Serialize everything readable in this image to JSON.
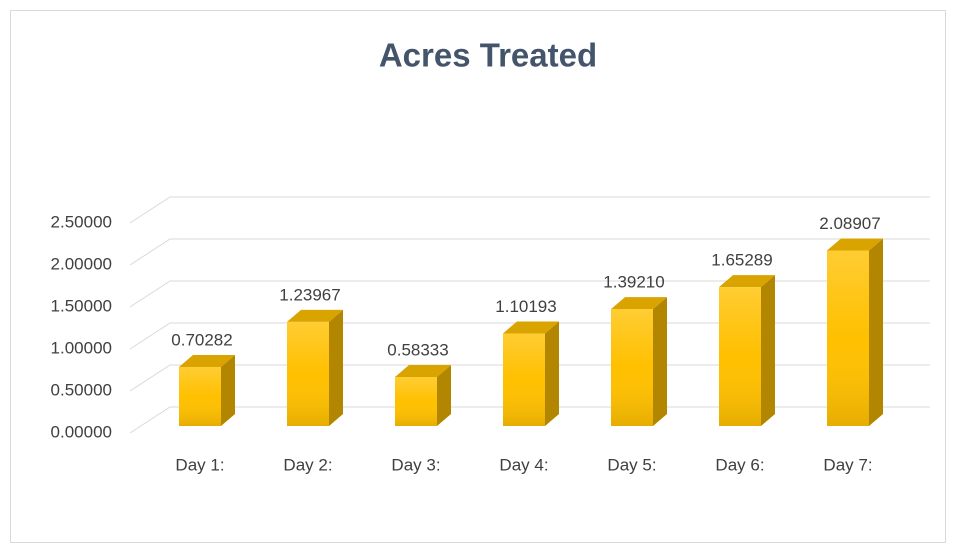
{
  "chart_data": {
    "type": "bar3d",
    "title": "Acres Treated",
    "categories": [
      "Day 1:",
      "Day 2:",
      "Day 3:",
      "Day 4:",
      "Day 5:",
      "Day 6:",
      "Day 7:"
    ],
    "values": [
      0.70282,
      1.23967,
      0.58333,
      1.10193,
      1.3921,
      1.65289,
      2.08907
    ],
    "value_labels": [
      "0.70282",
      "1.23967",
      "0.58333",
      "1.10193",
      "1.39210",
      "1.65289",
      "2.08907"
    ],
    "color": "#ffc000",
    "ylim": [
      0,
      2.5
    ],
    "yticks": [
      {
        "value": 0,
        "label": "0.00000"
      },
      {
        "value": 0.5,
        "label": "0.50000"
      },
      {
        "value": 1,
        "label": "1.00000"
      },
      {
        "value": 1.5,
        "label": "1.50000"
      },
      {
        "value": 2,
        "label": "2.00000"
      },
      {
        "value": 2.5,
        "label": "2.50000"
      }
    ],
    "grid": true
  }
}
